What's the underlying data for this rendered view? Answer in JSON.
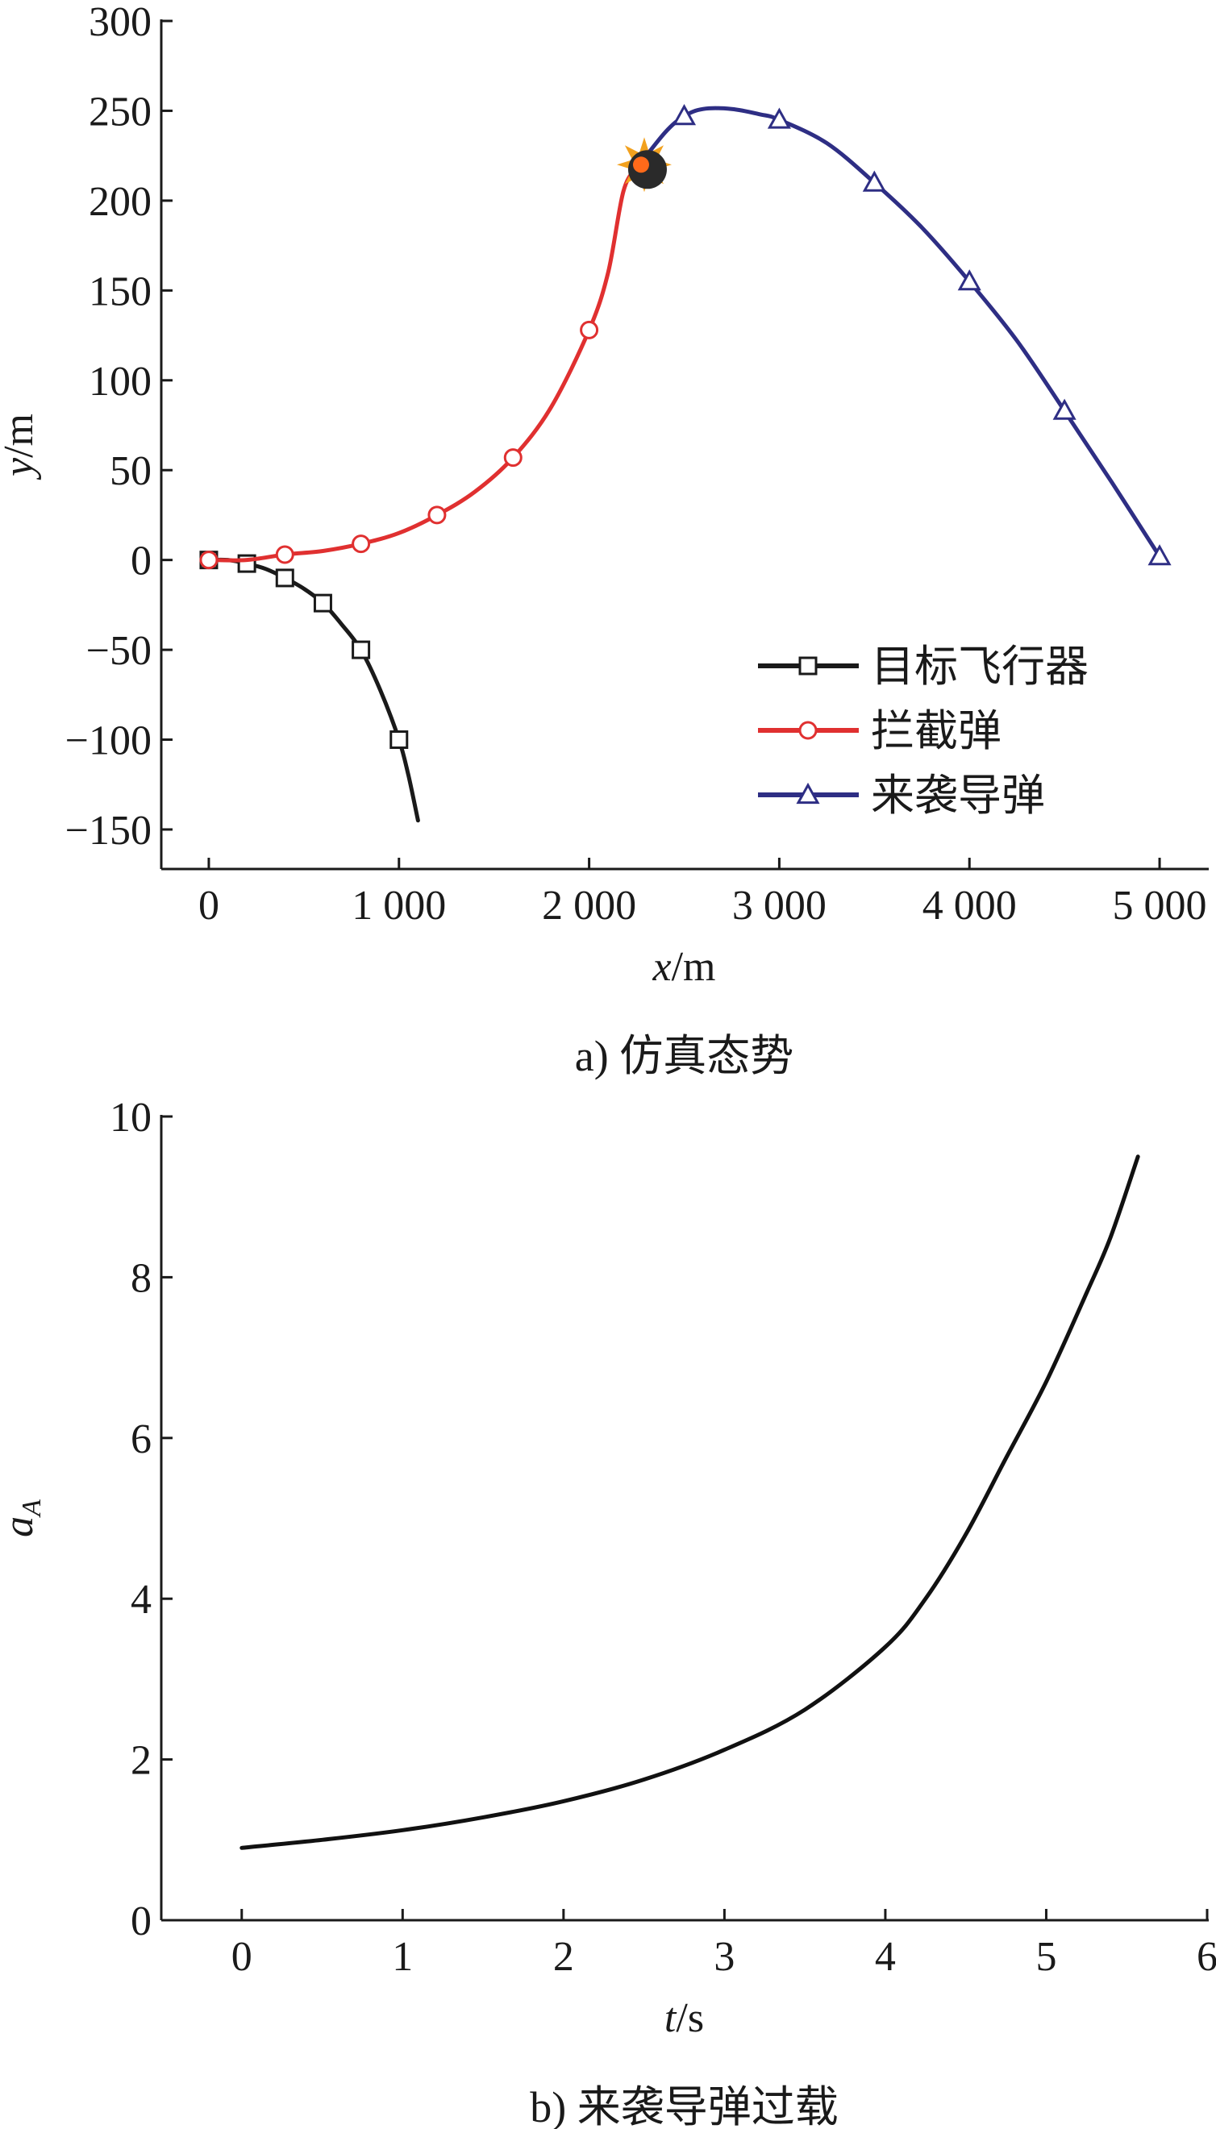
{
  "chart_data": [
    {
      "type": "line",
      "caption": "a) 仿真态势",
      "xlabel": {
        "var": "x",
        "unit": "/m"
      },
      "ylabel": {
        "var": "y",
        "unit": "/m"
      },
      "xlim": [
        -250,
        5250
      ],
      "ylim": [
        -172,
        300
      ],
      "xticks": [
        0,
        1000,
        2000,
        3000,
        4000,
        5000
      ],
      "xtick_labels": [
        "0",
        "1 000",
        "2 000",
        "3 000",
        "4 000",
        "5 000"
      ],
      "yticks": [
        -150,
        -100,
        -50,
        0,
        50,
        100,
        150,
        200,
        250,
        300
      ],
      "ytick_labels": [
        "−150",
        "−100",
        "−50",
        "0",
        "50",
        "100",
        "150",
        "200",
        "250",
        "300"
      ],
      "grid": false,
      "legend_position": "lower-right",
      "series": [
        {
          "name": "目标飞行器",
          "color": "#1a1a1a",
          "marker": "square",
          "x": [
            0,
            100,
            200,
            300,
            400,
            500,
            600,
            700,
            800,
            900,
            1000,
            1050,
            1100
          ],
          "y": [
            0,
            0,
            -2,
            -5,
            -10,
            -16,
            -24,
            -36,
            -50,
            -72,
            -100,
            -120,
            -145
          ],
          "marker_x": [
            0,
            200,
            400,
            600,
            800,
            1000
          ],
          "marker_y": [
            0,
            -2,
            -10,
            -24,
            -50,
            -100
          ]
        },
        {
          "name": "拦截弹",
          "color": "#e03030",
          "marker": "circle",
          "x": [
            0,
            200,
            400,
            600,
            800,
            1000,
            1200,
            1400,
            1600,
            1800,
            2000,
            2100,
            2180,
            2250,
            2300
          ],
          "y": [
            0,
            0,
            3,
            5,
            9,
            15,
            25,
            38,
            57,
            85,
            128,
            160,
            205,
            218,
            222
          ],
          "marker_x": [
            0,
            400,
            800,
            1200,
            1600,
            2000
          ],
          "marker_y": [
            0,
            3,
            9,
            25,
            57,
            128
          ]
        },
        {
          "name": "来袭导弹",
          "color": "#2e2e84",
          "marker": "triangle",
          "x": [
            2250,
            2400,
            2500,
            2600,
            2750,
            2900,
            3000,
            3250,
            3500,
            3750,
            4000,
            4250,
            4500,
            4750,
            5000
          ],
          "y": [
            218,
            238,
            247,
            251,
            251,
            248,
            245,
            232,
            210,
            185,
            155,
            122,
            83,
            43,
            2
          ],
          "marker_x": [
            2500,
            3000,
            3500,
            4000,
            4500,
            5000
          ],
          "marker_y": [
            247,
            245,
            210,
            155,
            83,
            2
          ]
        }
      ],
      "annotations": [
        {
          "type": "explosion",
          "x": 2290,
          "y": 220
        }
      ]
    },
    {
      "type": "line",
      "caption": "b) 来袭导弹过载",
      "xlabel": {
        "var": "t",
        "unit": "/s"
      },
      "ylabel": {
        "var": "a",
        "sub": "A"
      },
      "xlim": [
        -0.5,
        6
      ],
      "ylim": [
        0,
        10
      ],
      "xticks": [
        0,
        1,
        2,
        3,
        4,
        5,
        6
      ],
      "xtick_labels": [
        "0",
        "1",
        "2",
        "3",
        "4",
        "5",
        "6"
      ],
      "yticks": [
        0,
        2,
        4,
        6,
        8,
        10
      ],
      "ytick_labels": [
        "0",
        "2",
        "4",
        "6",
        "8",
        "10"
      ],
      "grid": false,
      "series": [
        {
          "color": "#111111",
          "x": [
            0,
            0.5,
            1,
            1.5,
            2,
            2.5,
            3,
            3.5,
            4,
            4.25,
            4.5,
            4.75,
            5,
            5.25,
            5.4,
            5.57
          ],
          "y": [
            0.9,
            1.0,
            1.12,
            1.28,
            1.48,
            1.75,
            2.12,
            2.62,
            3.4,
            4.0,
            4.8,
            5.75,
            6.7,
            7.8,
            8.5,
            9.5
          ]
        }
      ]
    }
  ]
}
